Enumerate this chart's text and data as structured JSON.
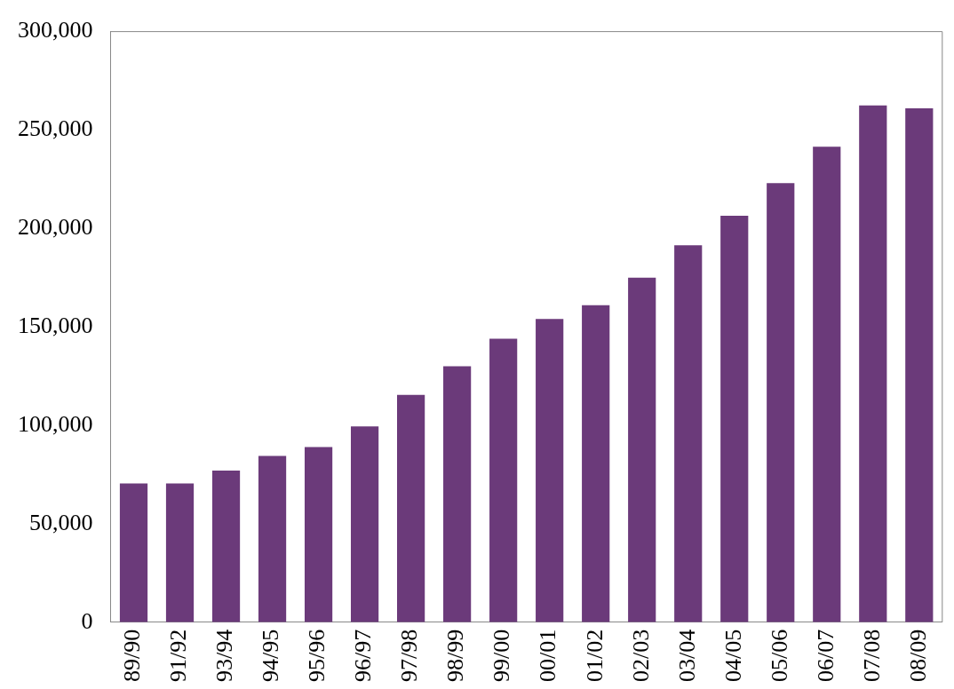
{
  "chart_data": {
    "type": "bar",
    "categories": [
      "89/90",
      "91/92",
      "93/94",
      "94/95",
      "95/96",
      "96/97",
      "97/98",
      "98/99",
      "99/00",
      "00/01",
      "01/02",
      "02/03",
      "03/04",
      "04/05",
      "05/06",
      "06/07",
      "07/08",
      "08/09"
    ],
    "values": [
      70500,
      70500,
      77000,
      84500,
      89000,
      99500,
      115500,
      130000,
      144000,
      154000,
      161000,
      175000,
      191500,
      206500,
      223000,
      241500,
      262500,
      261000
    ],
    "color": "#6b3a7a",
    "ylim": [
      0,
      300000
    ],
    "yticks": [
      {
        "value": 0,
        "label": "0"
      },
      {
        "value": 50000,
        "label": "50,000"
      },
      {
        "value": 100000,
        "label": "100,000"
      },
      {
        "value": 150000,
        "label": "150,000"
      },
      {
        "value": 200000,
        "label": "200,000"
      },
      {
        "value": 250000,
        "label": "250,000"
      },
      {
        "value": 300000,
        "label": "300,000"
      }
    ],
    "grid": false,
    "legend": false
  }
}
